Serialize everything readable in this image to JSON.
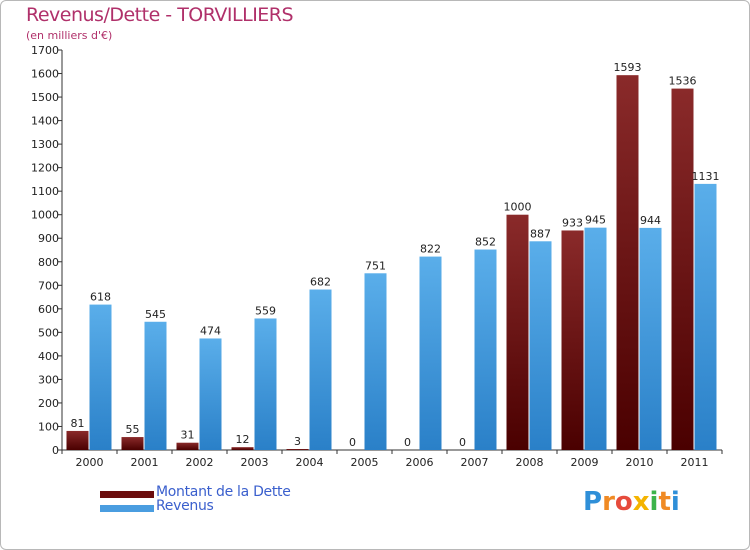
{
  "title": "Revenus/Dette - TORVILLIERS",
  "subtitle": "(en milliers d'€)",
  "colors": {
    "debt": "#7a1f1f",
    "debt_dark": "#4a0000",
    "revenue": "#55a8e8",
    "revenue_dark": "#2a80c8",
    "title": "#b0306a",
    "legend_text": "#3a5fcd"
  },
  "legend": [
    {
      "label": "Montant de la Dette",
      "color": "#6b0d0d"
    },
    {
      "label": "Revenus",
      "color": "#4a9de0"
    }
  ],
  "logo": {
    "text": "Proxiti"
  },
  "chart_data": {
    "type": "bar",
    "title": "Revenus/Dette - TORVILLIERS",
    "ylabel": "(en milliers d'€)",
    "xlabel": "",
    "categories": [
      "2000",
      "2001",
      "2002",
      "2003",
      "2004",
      "2005",
      "2006",
      "2007",
      "2008",
      "2009",
      "2010",
      "2011"
    ],
    "series": [
      {
        "name": "Montant de la Dette",
        "values": [
          81,
          55,
          31,
          12,
          3,
          0,
          0,
          0,
          1000,
          933,
          1593,
          1536
        ]
      },
      {
        "name": "Revenus",
        "values": [
          618,
          545,
          474,
          559,
          682,
          751,
          822,
          852,
          887,
          945,
          944,
          1131
        ]
      }
    ],
    "ylim": [
      0,
      1700
    ],
    "yticks": [
      0,
      100,
      200,
      300,
      400,
      500,
      600,
      700,
      800,
      900,
      1000,
      1100,
      1200,
      1300,
      1400,
      1500,
      1600,
      1700
    ],
    "grid": false,
    "legend": "bottom-left"
  }
}
